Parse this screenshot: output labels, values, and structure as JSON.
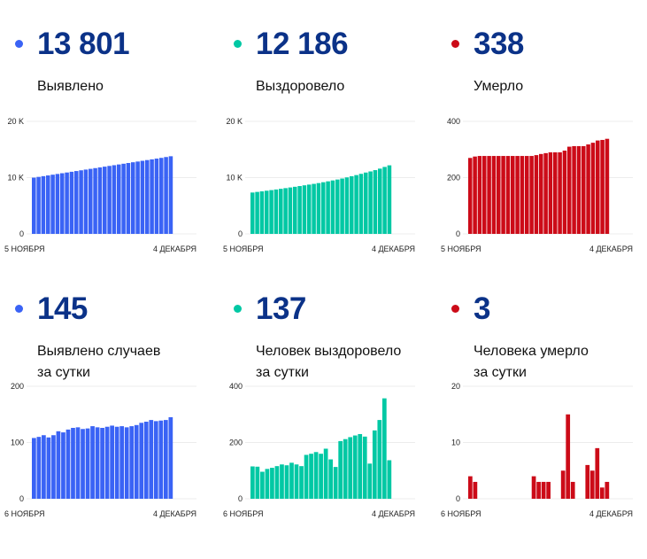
{
  "colors": {
    "blue": "#3a63f5",
    "teal": "#00c8a4",
    "red": "#cc0b18",
    "number": "#0b3288"
  },
  "panels": [
    {
      "value": "13 801",
      "label": [
        "Выявлено"
      ],
      "color": "#3a63f5",
      "chart_data": {
        "type": "bar",
        "title": "Выявлено",
        "ylim": [
          0,
          20000
        ],
        "yticks": [
          "0",
          "10 K",
          "20 K"
        ],
        "ytick_values": [
          0,
          10000,
          20000
        ],
        "xlabels": [
          "5 НОЯБРЯ",
          "4 ДЕКАБРЯ"
        ],
        "values": [
          10000,
          10130,
          10260,
          10390,
          10520,
          10650,
          10780,
          10910,
          11040,
          11170,
          11300,
          11430,
          11560,
          11690,
          11820,
          11950,
          12080,
          12210,
          12340,
          12470,
          12600,
          12730,
          12860,
          12990,
          13120,
          13250,
          13380,
          13510,
          13660,
          13801
        ]
      }
    },
    {
      "value": "12 186",
      "label": [
        "Выздоровело"
      ],
      "color": "#00c8a4",
      "chart_data": {
        "type": "bar",
        "title": "Выздоровело",
        "ylim": [
          0,
          20000
        ],
        "yticks": [
          "0",
          "10 K",
          "20 K"
        ],
        "ytick_values": [
          0,
          10000,
          20000
        ],
        "xlabels": [
          "5 НОЯБРЯ",
          "4 ДЕКАБРЯ"
        ],
        "values": [
          7350,
          7460,
          7560,
          7670,
          7780,
          7890,
          8010,
          8130,
          8250,
          8370,
          8500,
          8630,
          8760,
          8890,
          9030,
          9180,
          9340,
          9500,
          9660,
          9840,
          10040,
          10250,
          10450,
          10670,
          10900,
          11100,
          11330,
          11600,
          11900,
          12186
        ]
      }
    },
    {
      "value": "338",
      "label": [
        "Умерло"
      ],
      "color": "#cc0b18",
      "chart_data": {
        "type": "bar",
        "title": "Умерло",
        "ylim": [
          0,
          400
        ],
        "yticks": [
          "0",
          "200",
          "400"
        ],
        "ytick_values": [
          0,
          200,
          400
        ],
        "xlabels": [
          "5 НОЯБРЯ",
          "4 ДЕКАБРЯ"
        ],
        "values": [
          270,
          275,
          277,
          277,
          277,
          277,
          277,
          277,
          277,
          277,
          277,
          277,
          277,
          277,
          280,
          284,
          287,
          290,
          290,
          290,
          296,
          310,
          312,
          312,
          312,
          318,
          324,
          332,
          334,
          338
        ]
      }
    },
    {
      "value": "145",
      "label": [
        "Выявлено случаев",
        "за сутки"
      ],
      "color": "#3a63f5",
      "chart_data": {
        "type": "bar",
        "title": "Выявлено случаев за сутки",
        "ylim": [
          0,
          200
        ],
        "yticks": [
          "0",
          "100",
          "200"
        ],
        "ytick_values": [
          0,
          100,
          200
        ],
        "xlabels": [
          "6 НОЯБРЯ",
          "4 ДЕКАБРЯ"
        ],
        "values": [
          108,
          110,
          113,
          109,
          113,
          120,
          118,
          123,
          126,
          127,
          124,
          125,
          129,
          127,
          126,
          128,
          130,
          128,
          129,
          127,
          129,
          131,
          135,
          137,
          140,
          138,
          139,
          140,
          145
        ]
      }
    },
    {
      "value": "137",
      "label": [
        "Человек выздоровело",
        "за сутки"
      ],
      "color": "#00c8a4",
      "chart_data": {
        "type": "bar",
        "title": "Человек выздоровело за сутки",
        "ylim": [
          0,
          400
        ],
        "yticks": [
          "0",
          "200",
          "400"
        ],
        "ytick_values": [
          0,
          200,
          400
        ],
        "xlabels": [
          "6 НОЯБРЯ",
          "4 ДЕКАБРЯ"
        ],
        "values": [
          115,
          114,
          96,
          106,
          110,
          116,
          122,
          119,
          128,
          122,
          116,
          156,
          160,
          166,
          160,
          178,
          140,
          113,
          205,
          212,
          219,
          225,
          230,
          221,
          125,
          243,
          280,
          357,
          137
        ]
      }
    },
    {
      "value": "3",
      "label": [
        "Человека умерло",
        "за сутки"
      ],
      "color": "#cc0b18",
      "chart_data": {
        "type": "bar",
        "title": "Человека умерло за сутки",
        "ylim": [
          0,
          20
        ],
        "yticks": [
          "0",
          "10",
          "20"
        ],
        "ytick_values": [
          0,
          10,
          20
        ],
        "xlabels": [
          "6 НОЯБРЯ",
          "4 ДЕКАБРЯ"
        ],
        "values": [
          4,
          3,
          0,
          0,
          0,
          0,
          0,
          0,
          0,
          0,
          0,
          0,
          0,
          4,
          3,
          3,
          3,
          0,
          0,
          5,
          15,
          3,
          0,
          0,
          6,
          5,
          9,
          2,
          3
        ]
      }
    }
  ]
}
